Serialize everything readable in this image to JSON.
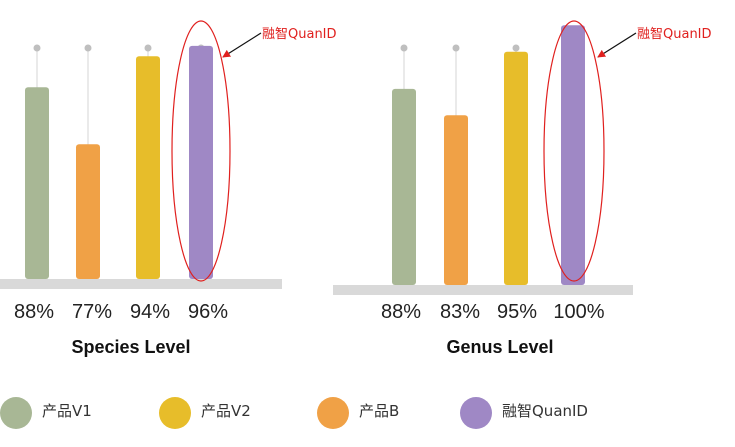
{
  "chart_data": [
    {
      "type": "bar",
      "title": "Species Level",
      "categories": [
        "产品V1",
        "产品B",
        "产品V2",
        "融智QuanID"
      ],
      "values": [
        88,
        77,
        94,
        96
      ],
      "value_labels": [
        "88%",
        "77%",
        "94%",
        "96%"
      ],
      "highlight": {
        "category": "融智QuanID",
        "annotation": "融智QuanID"
      }
    },
    {
      "type": "bar",
      "title": "Genus Level",
      "categories": [
        "产品V1",
        "产品B",
        "产品V2",
        "融智QuanID"
      ],
      "values": [
        88,
        83,
        95,
        100
      ],
      "value_labels": [
        "88%",
        "83%",
        "95%",
        "100%"
      ],
      "highlight": {
        "category": "融智QuanID",
        "annotation": "融智QuanID"
      }
    }
  ],
  "legend": [
    {
      "label": "产品V1",
      "color": "#a8b795"
    },
    {
      "label": "产品V2",
      "color": "#e7bd2a"
    },
    {
      "label": "产品B",
      "color": "#f0a146"
    },
    {
      "label": "融智QuanID",
      "color": "#9f88c5"
    }
  ],
  "colors": {
    "产品V1": "#a8b795",
    "产品B": "#f0a146",
    "产品V2": "#e7bd2a",
    "融智QuanID": "#9f88c5",
    "annotation": "#e0201e",
    "baseline": "#d9d9d9"
  }
}
